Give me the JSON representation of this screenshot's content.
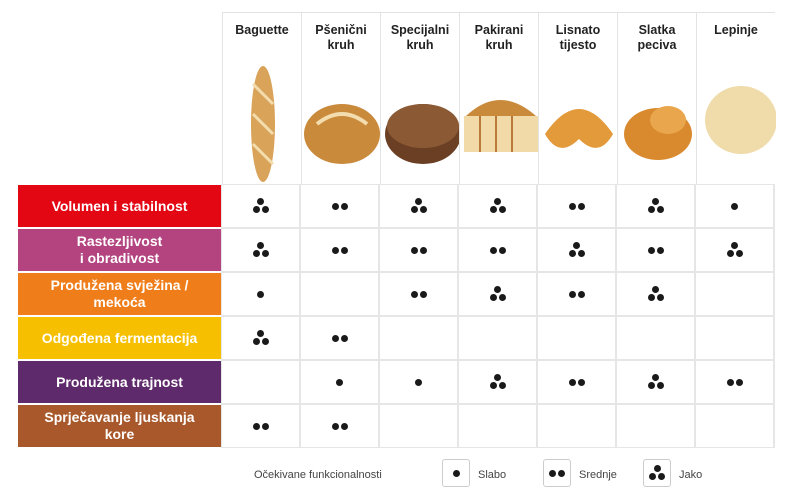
{
  "chart_data": {
    "type": "table",
    "columns": [
      "Baguette",
      "Pšenični\nkruh",
      "Specijalni\nkruh",
      "Pakirani\nkruh",
      "Lisnato\ntijesto",
      "Slatka\npeciva",
      "Lepinje"
    ],
    "rows": [
      {
        "label": "Volumen i stabilnost",
        "color": "#e30613",
        "values": [
          3,
          2,
          3,
          3,
          2,
          3,
          1
        ]
      },
      {
        "label": "Rastezljivost\ni obradivost",
        "color": "#b3447f",
        "values": [
          3,
          2,
          2,
          2,
          3,
          2,
          3
        ]
      },
      {
        "label": "Produžena svježina /\nmekoća",
        "color": "#ef7d1a",
        "values": [
          1,
          0,
          2,
          3,
          2,
          3,
          0
        ]
      },
      {
        "label": "Odgođena fermentacija",
        "color": "#f6c000",
        "values": [
          3,
          2,
          0,
          0,
          0,
          0,
          0
        ]
      },
      {
        "label": "Produžena trajnost",
        "color": "#5f2a6b",
        "values": [
          0,
          1,
          1,
          3,
          2,
          3,
          2
        ]
      },
      {
        "label": "Sprječavanje ljuskanja\nkore",
        "color": "#a8582b",
        "values": [
          2,
          2,
          0,
          0,
          0,
          0,
          0
        ]
      }
    ],
    "legend": {
      "title": "Očekivane funkcionalnosti",
      "items": [
        {
          "dots": 1,
          "label": "Slabo"
        },
        {
          "dots": 2,
          "label": "Srednje"
        },
        {
          "dots": 3,
          "label": "Jako"
        }
      ]
    }
  }
}
